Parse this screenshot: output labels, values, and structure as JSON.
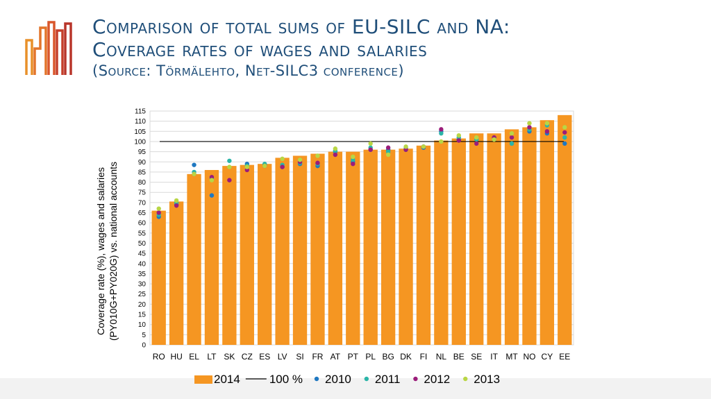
{
  "slide": {
    "title_line1": "Comparison of total sums of EU-SILC and NA:",
    "title_line2": "Coverage rates of wages and salaries",
    "title_line3": "(Source:   Törmälehto, Net-SILC3 conference)",
    "accent_colors": [
      "#e8902a",
      "#d9562b",
      "#b8352a"
    ]
  },
  "chart_data": {
    "type": "bar",
    "title": "",
    "xlabel": "",
    "ylabel_line1": "Coverage rate (%), wages and salaries",
    "ylabel_line2": "(PY010G+PY020G) vs. national accounts",
    "ylim": [
      0,
      115
    ],
    "yticks": [
      0,
      5,
      10,
      15,
      20,
      25,
      30,
      35,
      40,
      45,
      50,
      55,
      60,
      65,
      70,
      75,
      80,
      85,
      90,
      95,
      100,
      105,
      110,
      115
    ],
    "grid": true,
    "legend_position": "bottom",
    "categories": [
      "RO",
      "HU",
      "EL",
      "LT",
      "SK",
      "CZ",
      "ES",
      "LV",
      "SI",
      "FR",
      "AT",
      "PT",
      "PL",
      "BG",
      "DK",
      "FI",
      "NL",
      "BE",
      "SE",
      "IT",
      "MT",
      "NO",
      "CY",
      "EE"
    ],
    "bar_series": {
      "name": "2014",
      "color": "#f59622",
      "values": [
        66,
        70.5,
        84,
        86,
        88,
        88.5,
        89,
        92,
        93,
        94,
        95,
        95,
        96,
        96,
        96.5,
        98,
        100.5,
        101.5,
        104,
        104,
        106,
        107,
        110.5,
        113
      ]
    },
    "reference_line": {
      "name": "100 %",
      "value": 100,
      "color": "#000000"
    },
    "point_series": [
      {
        "name": "2010",
        "color": "#1f78c1",
        "values": [
          63,
          69,
          88.5,
          73.5,
          null,
          89,
          88.5,
          87.5,
          89,
          88,
          95,
          90,
          96,
          96,
          96,
          97,
          105,
          101,
          null,
          102,
          99,
          105,
          104,
          99
        ]
      },
      {
        "name": "2011",
        "color": "#2bb5a8",
        "values": [
          64,
          70,
          85,
          82,
          90.5,
          88,
          89,
          88.5,
          89.5,
          89,
          95.5,
          91,
          97,
          95,
          97,
          97.5,
          104,
          102,
          101,
          101,
          99,
          106,
          108,
          102
        ]
      },
      {
        "name": "2012",
        "color": "#9b1d7a",
        "values": [
          65,
          68.5,
          84,
          82.5,
          81,
          86,
          88,
          87.5,
          90,
          89.5,
          93.5,
          89,
          96,
          97,
          96,
          97.5,
          106,
          100.5,
          99,
          102,
          102,
          107,
          105,
          104.5
        ]
      },
      {
        "name": "2013",
        "color": "#b9d645",
        "values": [
          67,
          71,
          84,
          81,
          87.5,
          87.5,
          88,
          91.5,
          91,
          93,
          96.5,
          92.5,
          99,
          93.5,
          97.5,
          97.5,
          100,
          103,
          102,
          101,
          104,
          109,
          109,
          107
        ]
      }
    ]
  }
}
